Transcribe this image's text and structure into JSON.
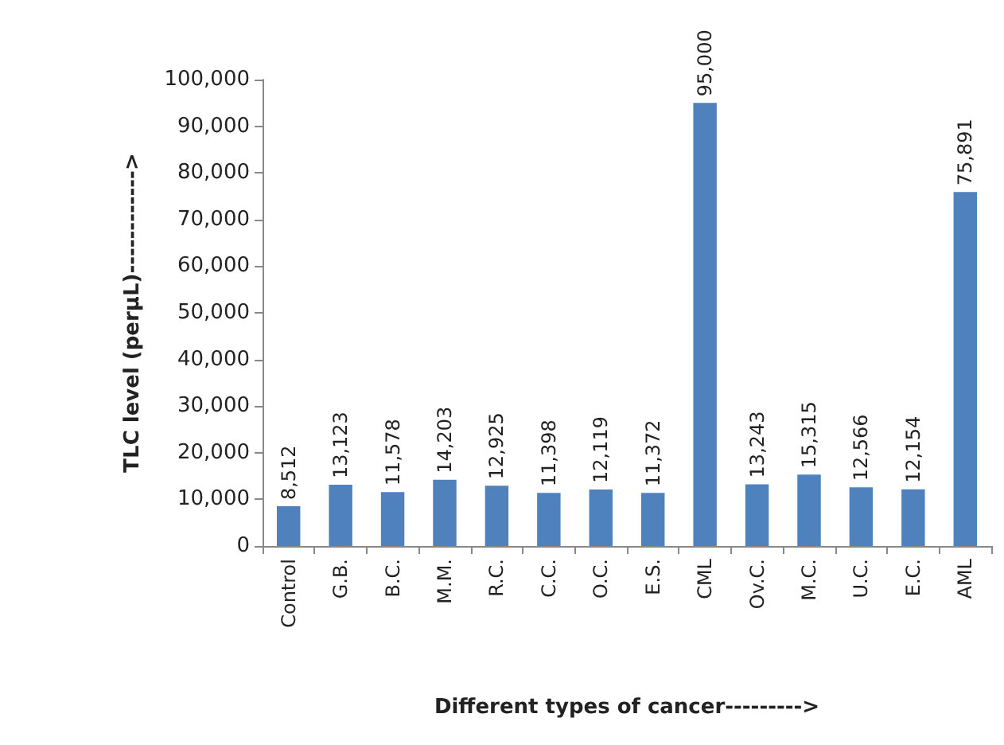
{
  "chart_data": {
    "type": "bar",
    "xlabel": "Different types of cancer--------->",
    "ylabel": "TLC level (perµL)------------>",
    "categories": [
      "Control",
      "G.B.",
      "B.C.",
      "M.M.",
      "R.C.",
      "C.C.",
      "O.C.",
      "E.S.",
      "CML",
      "Ov.C.",
      "M.C.",
      "U.C.",
      "E.C.",
      "AML"
    ],
    "values": [
      8512,
      13123,
      11578,
      14203,
      12925,
      11398,
      12119,
      11372,
      95000,
      13243,
      15315,
      12566,
      12154,
      75891
    ],
    "value_labels": [
      "8,512",
      "13,123",
      "11,578",
      "14,203",
      "12,925",
      "11,398",
      "12,119",
      "11,372",
      "95,000",
      "13,243",
      "15,315",
      "12,566",
      "12,154",
      "75,891"
    ],
    "color": "#4f81bd",
    "ylim": [
      0,
      100000
    ],
    "yticks": [
      0,
      {
        "value": 10000,
        "label": "10,000"
      },
      {
        "value": 20000,
        "label": "20,000"
      },
      {
        "value": 30000,
        "label": "30,000"
      },
      {
        "value": 40000,
        "label": "40,000"
      },
      {
        "value": 50000,
        "label": "50,000"
      },
      {
        "value": 60000,
        "label": "60,000"
      },
      {
        "value": 70000,
        "label": "70,000"
      },
      {
        "value": 80000,
        "label": "80,000"
      },
      {
        "value": 90000,
        "label": "90,000"
      },
      {
        "value": 100000,
        "label": "100,000"
      }
    ],
    "grid": false
  }
}
